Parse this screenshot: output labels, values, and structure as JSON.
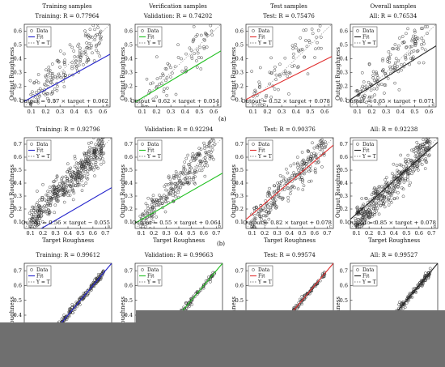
{
  "figure": {
    "row_captions": [
      "(a)",
      "(b)",
      ""
    ],
    "legend_labels": [
      "Data",
      "Fit",
      "Y = T"
    ],
    "colors": {
      "training": "#2323cc",
      "validation": "#22c022",
      "test": "#e03030",
      "all": "#222222",
      "marker": "#333333",
      "diagonal": "#999999",
      "occluder": "#6f6f6f"
    }
  },
  "chart_data": [
    {
      "type": "scatter",
      "title": "Training samples",
      "subtitle": "Training: R = 0.77964",
      "xlabel": "",
      "ylabel": "Output Roughness",
      "panel_letter": "a",
      "fit_equation": "Output = 0.57 × target + 0.062",
      "fit": {
        "slope": 0.57,
        "intercept": 0.062
      },
      "xlim": [
        0.05,
        0.65
      ],
      "ylim": [
        0.05,
        0.65
      ],
      "xticks": [
        0.1,
        0.2,
        0.3,
        0.4,
        0.5,
        0.6
      ],
      "yticks": [
        0.1,
        0.2,
        0.3,
        0.4,
        0.5,
        0.6
      ],
      "spread": 0.07,
      "points": 160,
      "series_color": "training",
      "legend": "top-left"
    },
    {
      "type": "scatter",
      "title": "Verification samples",
      "subtitle": "Validation: R = 0.74202",
      "xlabel": "",
      "ylabel": "Output Roughness",
      "panel_letter": "b",
      "fit_equation": "Output = 0.62 × target + 0.054",
      "fit": {
        "slope": 0.62,
        "intercept": 0.054
      },
      "xlim": [
        0.05,
        0.65
      ],
      "ylim": [
        0.05,
        0.65
      ],
      "xticks": [
        0.1,
        0.2,
        0.3,
        0.4,
        0.5,
        0.6
      ],
      "yticks": [
        0.1,
        0.2,
        0.3,
        0.4,
        0.5,
        0.6
      ],
      "spread": 0.08,
      "points": 80,
      "series_color": "validation",
      "legend": "top-left"
    },
    {
      "type": "scatter",
      "title": "Test samples",
      "subtitle": "Test: R = 0.75476",
      "xlabel": "",
      "ylabel": "Output Roughness",
      "panel_letter": "c",
      "fit_equation": "Output = 0.52 × target + 0.078",
      "fit": {
        "slope": 0.52,
        "intercept": 0.078
      },
      "xlim": [
        0.05,
        0.65
      ],
      "ylim": [
        0.05,
        0.65
      ],
      "xticks": [
        0.1,
        0.2,
        0.3,
        0.4,
        0.5,
        0.6
      ],
      "yticks": [
        0.1,
        0.2,
        0.3,
        0.4,
        0.5,
        0.6
      ],
      "spread": 0.08,
      "points": 80,
      "series_color": "test",
      "legend": "top-left"
    },
    {
      "type": "scatter",
      "title": "Overall samples",
      "subtitle": "All: R = 0.76534",
      "xlabel": "",
      "ylabel": "Output Roughness",
      "panel_letter": "d",
      "fit_equation": "Output = 0.65 × target + 0.071",
      "fit": {
        "slope": 0.65,
        "intercept": 0.071
      },
      "xlim": [
        0.05,
        0.65
      ],
      "ylim": [
        0.05,
        0.65
      ],
      "xticks": [
        0.1,
        0.2,
        0.3,
        0.4,
        0.5,
        0.6
      ],
      "yticks": [
        0.1,
        0.2,
        0.3,
        0.4,
        0.5,
        0.6
      ],
      "spread": 0.075,
      "points": 160,
      "series_color": "all",
      "legend": "top-left"
    },
    {
      "type": "scatter",
      "title": "",
      "subtitle": "Training: R = 0.92796",
      "xlabel": "Target Roughness",
      "ylabel": "Output Roughness",
      "panel_letter": "a",
      "fit_equation": "Output = 0.56 × target − 0.055",
      "fit": {
        "slope": 0.56,
        "intercept": -0.055
      },
      "xlim": [
        0.05,
        0.75
      ],
      "ylim": [
        0.05,
        0.75
      ],
      "xticks": [
        0.1,
        0.2,
        0.3,
        0.4,
        0.5,
        0.6,
        0.7
      ],
      "yticks": [
        0.1,
        0.2,
        0.3,
        0.4,
        0.5,
        0.6,
        0.7
      ],
      "spread": 0.06,
      "points": 450,
      "series_color": "training",
      "legend": "top-left"
    },
    {
      "type": "scatter",
      "title": "",
      "subtitle": "Validation: R = 0.92294",
      "xlabel": "Target Roughness",
      "ylabel": "Output Roughness",
      "panel_letter": "b",
      "fit_equation": "Output = 0.55 × target + 0.064",
      "fit": {
        "slope": 0.55,
        "intercept": 0.064
      },
      "xlim": [
        0.05,
        0.75
      ],
      "ylim": [
        0.05,
        0.75
      ],
      "xticks": [
        0.1,
        0.2,
        0.3,
        0.4,
        0.5,
        0.6,
        0.7
      ],
      "yticks": [
        0.1,
        0.2,
        0.3,
        0.4,
        0.5,
        0.6,
        0.7
      ],
      "spread": 0.06,
      "points": 250,
      "series_color": "validation",
      "legend": "top-left"
    },
    {
      "type": "scatter",
      "title": "",
      "subtitle": "Test: R = 0.90376",
      "xlabel": "Target Roughness",
      "ylabel": "Output Roughness",
      "panel_letter": "c",
      "fit_equation": "Output = 0.82 × target + 0.078",
      "fit": {
        "slope": 0.82,
        "intercept": 0.078
      },
      "xlim": [
        0.05,
        0.75
      ],
      "ylim": [
        0.05,
        0.75
      ],
      "xticks": [
        0.1,
        0.2,
        0.3,
        0.4,
        0.5,
        0.6,
        0.7
      ],
      "yticks": [
        0.1,
        0.2,
        0.3,
        0.4,
        0.5,
        0.6,
        0.7
      ],
      "spread": 0.06,
      "points": 250,
      "series_color": "test",
      "legend": "top-left"
    },
    {
      "type": "scatter",
      "title": "",
      "subtitle": "All: R = 0.92238",
      "xlabel": "Target Roughness",
      "ylabel": "Output Roughness",
      "panel_letter": "d",
      "fit_equation": "Output = 0.85 × target + 0.078",
      "fit": {
        "slope": 0.85,
        "intercept": 0.078
      },
      "xlim": [
        0.05,
        0.75
      ],
      "ylim": [
        0.05,
        0.75
      ],
      "xticks": [
        0.1,
        0.2,
        0.3,
        0.4,
        0.5,
        0.6,
        0.7
      ],
      "yticks": [
        0.1,
        0.2,
        0.3,
        0.4,
        0.5,
        0.6,
        0.7
      ],
      "spread": 0.06,
      "points": 450,
      "series_color": "all",
      "legend": "top-left"
    },
    {
      "type": "scatter",
      "title": "",
      "subtitle": "Training: R = 0.99612",
      "xlabel": "",
      "ylabel": "Output Roughness",
      "panel_letter": "",
      "fit_equation": "",
      "fit": {
        "slope": 1.0,
        "intercept": 0.0
      },
      "xlim": [
        0.05,
        0.75
      ],
      "ylim": [
        0.05,
        0.75
      ],
      "xticks": [],
      "yticks": [
        0.3,
        0.4,
        0.5,
        0.6,
        0.7
      ],
      "spread": 0.012,
      "points": 300,
      "series_color": "training",
      "legend": "top-left"
    },
    {
      "type": "scatter",
      "title": "",
      "subtitle": "Validation: R = 0.99663",
      "xlabel": "",
      "ylabel": "Output Roughness",
      "panel_letter": "",
      "fit_equation": "",
      "fit": {
        "slope": 1.0,
        "intercept": 0.0
      },
      "xlim": [
        0.05,
        0.75
      ],
      "ylim": [
        0.05,
        0.75
      ],
      "xticks": [],
      "yticks": [
        0.3,
        0.4,
        0.5,
        0.6,
        0.7
      ],
      "spread": 0.01,
      "points": 200,
      "series_color": "validation",
      "legend": "top-left"
    },
    {
      "type": "scatter",
      "title": "",
      "subtitle": "Test: R = 0.99574",
      "xlabel": "",
      "ylabel": "Output Roughness",
      "panel_letter": "",
      "fit_equation": "",
      "fit": {
        "slope": 1.0,
        "intercept": 0.0
      },
      "xlim": [
        0.05,
        0.75
      ],
      "ylim": [
        0.05,
        0.75
      ],
      "xticks": [],
      "yticks": [
        0.3,
        0.4,
        0.5,
        0.6,
        0.7
      ],
      "spread": 0.01,
      "points": 200,
      "series_color": "test",
      "legend": "top-left"
    },
    {
      "type": "scatter",
      "title": "",
      "subtitle": "All: R = 0.99527",
      "xlabel": "",
      "ylabel": "Output Roughness",
      "panel_letter": "",
      "fit_equation": "",
      "fit": {
        "slope": 1.0,
        "intercept": 0.0
      },
      "xlim": [
        0.05,
        0.75
      ],
      "ylim": [
        0.05,
        0.75
      ],
      "xticks": [],
      "yticks": [
        0.3,
        0.4,
        0.5,
        0.6,
        0.7
      ],
      "spread": 0.012,
      "points": 300,
      "series_color": "all",
      "legend": "top-left"
    }
  ]
}
